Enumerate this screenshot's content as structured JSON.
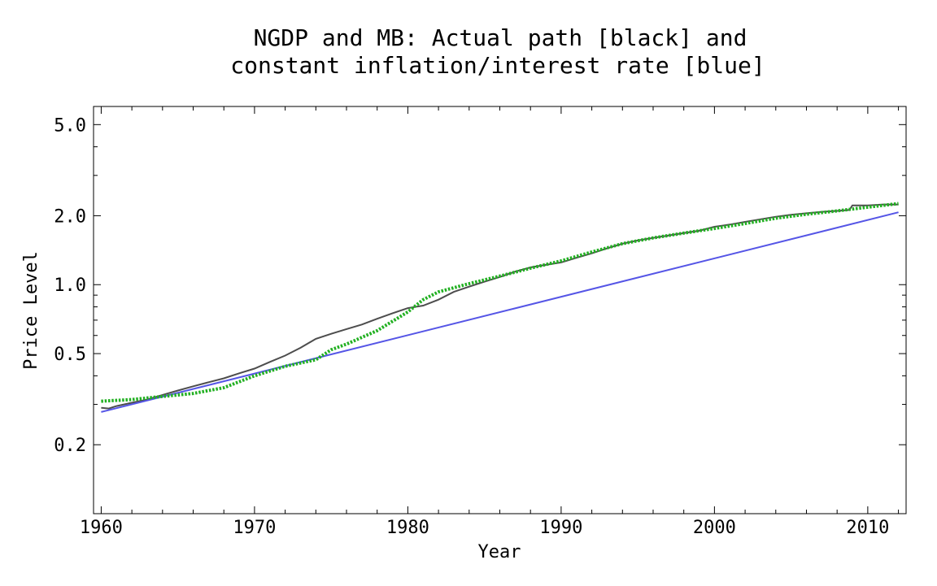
{
  "chart_data": {
    "type": "line",
    "title_lines": [
      "NGDP and MB: Actual path [black] and",
      "constant inflation/interest rate [blue]"
    ],
    "xlabel": "Year",
    "ylabel": "Price Level",
    "xlim": [
      1959.5,
      2012.5
    ],
    "ylim": [
      0.1,
      6.0
    ],
    "y_scale": "log",
    "x_ticks": [
      1960,
      1970,
      1980,
      1990,
      2000,
      2010
    ],
    "x_tick_labels": [
      "1960",
      "1970",
      "1980",
      "1990",
      "2000",
      "2010"
    ],
    "y_ticks": [
      0.2,
      0.5,
      1.0,
      2.0,
      5.0
    ],
    "y_tick_labels": [
      "0.2",
      "0.5",
      "1.0",
      "2.0",
      "5.0"
    ],
    "grid": false,
    "series": [
      {
        "color": "#4d4d4d",
        "style": "solid",
        "x": [
          1960,
          1960.5,
          1961,
          1962,
          1963,
          1964,
          1965,
          1966,
          1967,
          1968,
          1969,
          1970,
          1971,
          1972,
          1973,
          1974,
          1975,
          1976,
          1977,
          1978,
          1979,
          1980,
          1981,
          1982,
          1983,
          1984,
          1985,
          1986,
          1987,
          1988,
          1989,
          1990,
          1991,
          1992,
          1993,
          1994,
          1995,
          1996,
          1997,
          1998,
          1999,
          2000,
          2001,
          2002,
          2003,
          2004,
          2005,
          2006,
          2007,
          2008,
          2008.8,
          2009,
          2010,
          2011,
          2012
        ],
        "y": [
          0.29,
          0.288,
          0.295,
          0.305,
          0.315,
          0.33,
          0.345,
          0.36,
          0.375,
          0.39,
          0.41,
          0.43,
          0.46,
          0.49,
          0.53,
          0.58,
          0.61,
          0.64,
          0.67,
          0.71,
          0.75,
          0.79,
          0.81,
          0.86,
          0.93,
          0.98,
          1.03,
          1.08,
          1.14,
          1.19,
          1.22,
          1.25,
          1.31,
          1.37,
          1.44,
          1.51,
          1.56,
          1.6,
          1.64,
          1.68,
          1.72,
          1.79,
          1.83,
          1.88,
          1.93,
          1.98,
          2.02,
          2.05,
          2.08,
          2.1,
          2.12,
          2.22,
          2.22,
          2.24,
          2.24
        ]
      },
      {
        "color": "#5555e6",
        "style": "solid",
        "x": [
          1960,
          2012
        ],
        "y": [
          0.278,
          2.07
        ]
      },
      {
        "color": "#22b022",
        "style": "dotted",
        "x": [
          1960,
          1962,
          1964,
          1966,
          1968,
          1970,
          1972,
          1974,
          1975,
          1976,
          1978,
          1980,
          1981,
          1982,
          1983,
          1984,
          1986,
          1988,
          1990,
          1992,
          1994,
          1996,
          1998,
          2000,
          2002,
          2004,
          2006,
          2008,
          2010,
          2012
        ],
        "y": [
          0.31,
          0.315,
          0.325,
          0.335,
          0.355,
          0.4,
          0.44,
          0.47,
          0.52,
          0.55,
          0.63,
          0.76,
          0.86,
          0.93,
          0.97,
          1.01,
          1.09,
          1.18,
          1.27,
          1.39,
          1.51,
          1.6,
          1.68,
          1.76,
          1.85,
          1.95,
          2.03,
          2.1,
          2.18,
          2.26
        ]
      }
    ]
  }
}
